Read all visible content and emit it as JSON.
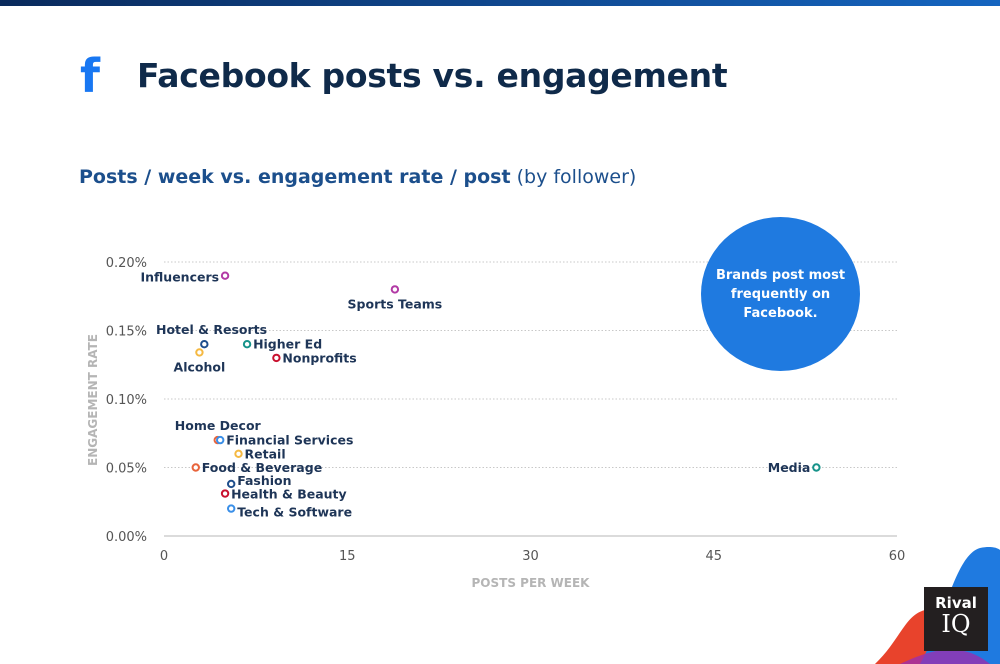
{
  "header": {
    "title": "Facebook posts vs. engagement",
    "brand_icon": "facebook-f-icon",
    "brand_color": "#1877f2"
  },
  "subtitle": {
    "bold": "Posts / week vs. engagement rate / post",
    "normal": "(by follower)"
  },
  "callout": "Brands post most frequently on Facebook.",
  "logo": {
    "line1": "Rival",
    "line2": "IQ"
  },
  "chart_data": {
    "type": "scatter",
    "xlabel": "POSTS PER WEEK",
    "ylabel": "ENGAGEMENT RATE",
    "xlim": [
      0,
      60
    ],
    "ylim": [
      0,
      0.2
    ],
    "xticks": [
      0,
      15,
      30,
      45,
      60
    ],
    "xtick_labels": [
      "0",
      "15",
      "30",
      "45",
      "60"
    ],
    "yticks": [
      0,
      0.05,
      0.1,
      0.15,
      0.2
    ],
    "ytick_labels": [
      "0.00%",
      "0.05%",
      "0.10%",
      "0.15%",
      "0.20%"
    ],
    "grid": "horizontal dotted",
    "points": [
      {
        "label": "Influencers",
        "x": 5.0,
        "y": 0.19,
        "color": "#b23aa5",
        "label_side": "left"
      },
      {
        "label": "Sports Teams",
        "x": 18.9,
        "y": 0.18,
        "color": "#b23aa5",
        "label_side": "below"
      },
      {
        "label": "Hotel & Resorts",
        "x": 3.3,
        "y": 0.14,
        "color": "#1f4e8c",
        "label_side": "above"
      },
      {
        "label": "Alcohol",
        "x": 2.9,
        "y": 0.134,
        "color": "#f5b942",
        "label_side": "below"
      },
      {
        "label": "Higher Ed",
        "x": 6.8,
        "y": 0.14,
        "color": "#17938a",
        "label_side": "right"
      },
      {
        "label": "Nonprofits",
        "x": 9.2,
        "y": 0.13,
        "color": "#c8102e",
        "label_side": "right"
      },
      {
        "label": "Home Decor",
        "x": 4.4,
        "y": 0.07,
        "color": "#e8643c",
        "label_side": "above"
      },
      {
        "label": "Financial Services",
        "x": 4.6,
        "y": 0.07,
        "color": "#3a8fe8",
        "label_side": "right"
      },
      {
        "label": "Retail",
        "x": 6.1,
        "y": 0.06,
        "color": "#f5b942",
        "label_side": "right"
      },
      {
        "label": "Food & Beverage",
        "x": 2.6,
        "y": 0.05,
        "color": "#e8643c",
        "label_side": "right"
      },
      {
        "label": "Fashion",
        "x": 5.5,
        "y": 0.038,
        "color": "#1f4e8c",
        "label_side": "right"
      },
      {
        "label": "Health & Beauty",
        "x": 5.0,
        "y": 0.031,
        "color": "#c8102e",
        "label_side": "right"
      },
      {
        "label": "Tech & Software",
        "x": 5.5,
        "y": 0.02,
        "color": "#3a8fe8",
        "label_side": "right"
      },
      {
        "label": "Media",
        "x": 53.4,
        "y": 0.05,
        "color": "#17938a",
        "label_side": "left"
      }
    ]
  }
}
